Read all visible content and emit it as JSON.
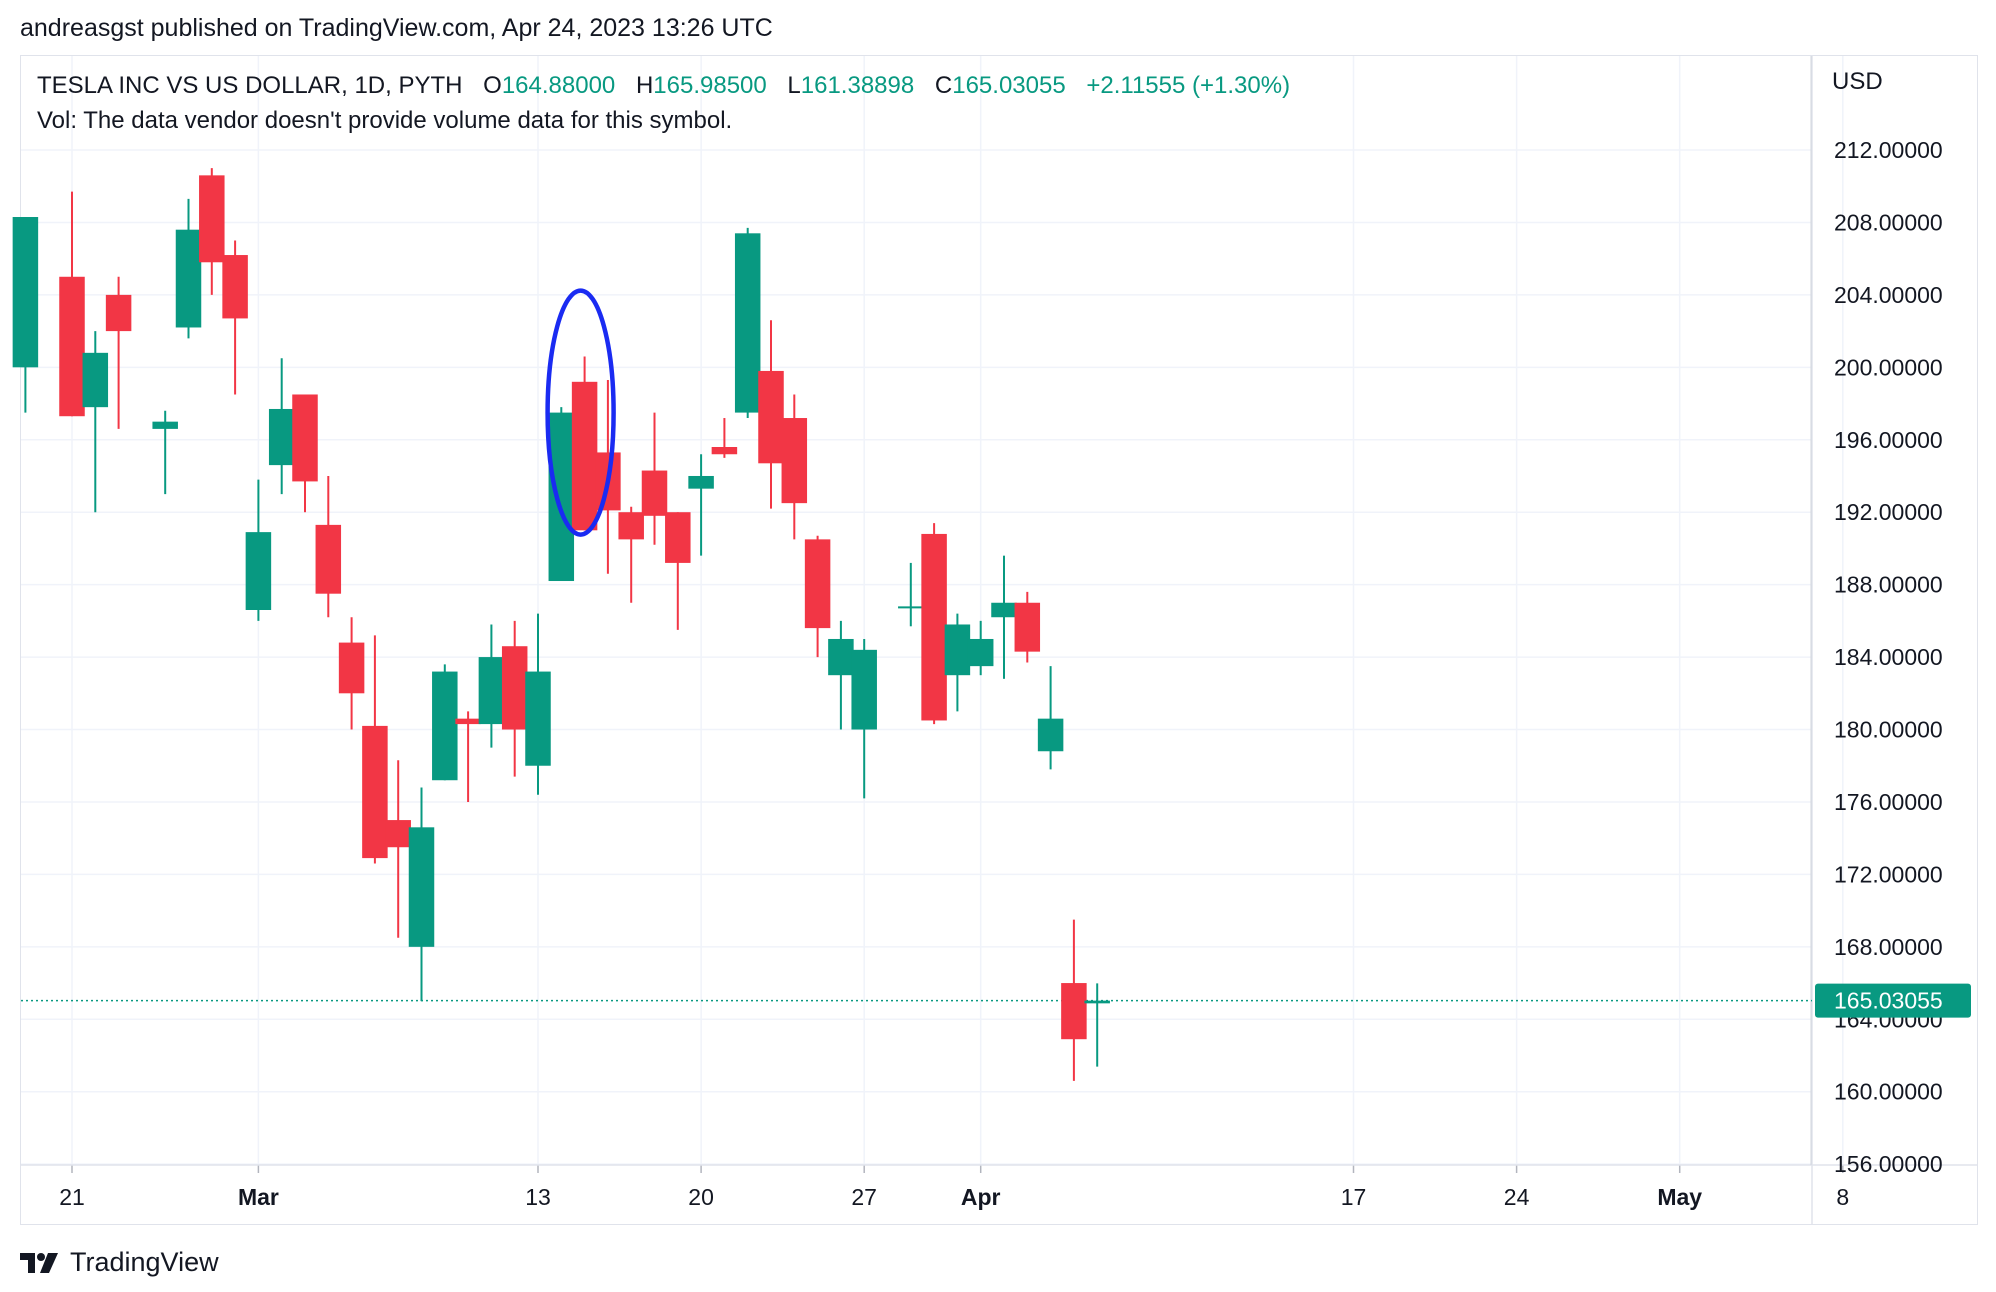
{
  "publisher_line": "andreasgst published on TradingView.com, Apr 24, 2023 13:26 UTC",
  "legend": {
    "symbol": "TESLA INC VS US DOLLAR, 1D, PYTH",
    "o_label": "O",
    "o_value": "164.88000",
    "h_label": "H",
    "h_value": "165.98500",
    "l_label": "L",
    "l_value": "161.38898",
    "c_label": "C",
    "c_value": "165.03055",
    "change": "+2.11555 (+1.30%)",
    "volume_note": "Vol: The data vendor doesn't provide volume data for this symbol."
  },
  "currency": "USD",
  "footer_brand": "TradingView",
  "colors": {
    "up": "#089981",
    "down": "#f23645",
    "grid": "#f0f3fa",
    "annotation": "#1a2bf2",
    "price_line": "#089981"
  },
  "chart_data": {
    "type": "candlestick",
    "title": "TESLA INC VS US DOLLAR, 1D, PYTH",
    "ylabel": "USD",
    "ylim": [
      155,
      217
    ],
    "y_ticks": [
      "212.00000",
      "208.00000",
      "204.00000",
      "200.00000",
      "196.00000",
      "192.00000",
      "188.00000",
      "184.00000",
      "180.00000",
      "176.00000",
      "172.00000",
      "168.00000",
      "164.00000",
      "160.00000",
      "156.00000"
    ],
    "y_tick_values": [
      212,
      208,
      204,
      200,
      196,
      192,
      188,
      184,
      180,
      176,
      172,
      168,
      164,
      160,
      156
    ],
    "x_ticks": [
      {
        "label": "21",
        "day": 0,
        "bold": false
      },
      {
        "label": "Mar",
        "day": 8,
        "bold": true
      },
      {
        "label": "13",
        "day": 20,
        "bold": false
      },
      {
        "label": "20",
        "day": 27,
        "bold": false
      },
      {
        "label": "27",
        "day": 34,
        "bold": false
      },
      {
        "label": "Apr",
        "day": 39,
        "bold": true
      },
      {
        "label": "17",
        "day": 55,
        "bold": false
      },
      {
        "label": "24",
        "day": 62,
        "bold": false
      },
      {
        "label": "May",
        "day": 69,
        "bold": true
      },
      {
        "label": "8",
        "day": 76,
        "bold": false
      }
    ],
    "last_price": 165.03055,
    "last_price_label": "165.03055",
    "candles": [
      {
        "d": -2,
        "o": 200.0,
        "h": 208.3,
        "l": 197.5,
        "c": 208.3
      },
      {
        "d": 0,
        "o": 205.0,
        "h": 209.7,
        "l": 197.3,
        "c": 197.3
      },
      {
        "d": 1,
        "o": 197.8,
        "h": 202.0,
        "l": 192.0,
        "c": 200.8
      },
      {
        "d": 2,
        "o": 204.0,
        "h": 205.0,
        "l": 196.6,
        "c": 202.0
      },
      {
        "d": 4,
        "o": 196.6,
        "h": 197.6,
        "l": 193.0,
        "c": 197.0
      },
      {
        "d": 5,
        "o": 202.2,
        "h": 209.3,
        "l": 201.6,
        "c": 207.6
      },
      {
        "d": 6,
        "o": 210.6,
        "h": 211.0,
        "l": 204.0,
        "c": 205.8
      },
      {
        "d": 7,
        "o": 206.2,
        "h": 207.0,
        "l": 198.5,
        "c": 202.7
      },
      {
        "d": 8,
        "o": 186.6,
        "h": 193.8,
        "l": 186.0,
        "c": 190.9
      },
      {
        "d": 9,
        "o": 194.6,
        "h": 200.5,
        "l": 193.0,
        "c": 197.7
      },
      {
        "d": 10,
        "o": 198.5,
        "h": 198.5,
        "l": 192.0,
        "c": 193.7
      },
      {
        "d": 11,
        "o": 191.3,
        "h": 194.0,
        "l": 186.2,
        "c": 187.5
      },
      {
        "d": 12,
        "o": 184.8,
        "h": 186.2,
        "l": 180.0,
        "c": 182.0
      },
      {
        "d": 13,
        "o": 180.2,
        "h": 185.2,
        "l": 172.6,
        "c": 172.9
      },
      {
        "d": 14,
        "o": 175.0,
        "h": 178.3,
        "l": 168.5,
        "c": 173.5
      },
      {
        "d": 15,
        "o": 168.0,
        "h": 176.8,
        "l": 165.0,
        "c": 174.6
      },
      {
        "d": 16,
        "o": 177.2,
        "h": 183.6,
        "l": 177.2,
        "c": 183.2
      },
      {
        "d": 17,
        "o": 180.6,
        "h": 181.0,
        "l": 176.0,
        "c": 180.3
      },
      {
        "d": 18,
        "o": 180.3,
        "h": 185.8,
        "l": 179.0,
        "c": 184.0
      },
      {
        "d": 19,
        "o": 184.6,
        "h": 186.0,
        "l": 177.4,
        "c": 180.0
      },
      {
        "d": 20,
        "o": 178.0,
        "h": 186.4,
        "l": 176.4,
        "c": 183.2
      },
      {
        "d": 21,
        "o": 188.2,
        "h": 197.8,
        "l": 188.2,
        "c": 197.5
      },
      {
        "d": 22,
        "o": 199.2,
        "h": 200.6,
        "l": 191.0,
        "c": 191.0
      },
      {
        "d": 23,
        "o": 195.3,
        "h": 199.3,
        "l": 188.6,
        "c": 192.1
      },
      {
        "d": 24,
        "o": 192.0,
        "h": 192.3,
        "l": 187.0,
        "c": 190.5
      },
      {
        "d": 25,
        "o": 194.3,
        "h": 197.5,
        "l": 190.2,
        "c": 191.8
      },
      {
        "d": 26,
        "o": 192.0,
        "h": 192.0,
        "l": 185.5,
        "c": 189.2
      },
      {
        "d": 27,
        "o": 193.3,
        "h": 195.2,
        "l": 189.6,
        "c": 194.0
      },
      {
        "d": 28,
        "o": 195.6,
        "h": 197.2,
        "l": 195.0,
        "c": 195.2
      },
      {
        "d": 29,
        "o": 197.5,
        "h": 207.7,
        "l": 197.2,
        "c": 207.4
      },
      {
        "d": 30,
        "o": 199.8,
        "h": 202.6,
        "l": 192.2,
        "c": 194.7
      },
      {
        "d": 31,
        "o": 197.2,
        "h": 198.5,
        "l": 190.5,
        "c": 192.5
      },
      {
        "d": 32,
        "o": 190.5,
        "h": 190.7,
        "l": 184.0,
        "c": 185.6
      },
      {
        "d": 33,
        "o": 183.0,
        "h": 186.0,
        "l": 180.0,
        "c": 185.0
      },
      {
        "d": 34,
        "o": 180.0,
        "h": 185.0,
        "l": 176.2,
        "c": 184.4
      },
      {
        "d": 36,
        "o": 186.8,
        "h": 189.2,
        "l": 185.7,
        "c": 186.8
      },
      {
        "d": 37,
        "o": 190.8,
        "h": 191.4,
        "l": 180.3,
        "c": 180.5
      },
      {
        "d": 38,
        "o": 183.0,
        "h": 186.4,
        "l": 181.0,
        "c": 185.8
      },
      {
        "d": 39,
        "o": 183.5,
        "h": 186.0,
        "l": 183.0,
        "c": 185.0
      },
      {
        "d": 40,
        "o": 186.2,
        "h": 189.6,
        "l": 182.8,
        "c": 187.0
      },
      {
        "d": 41,
        "o": 187.0,
        "h": 187.6,
        "l": 183.7,
        "c": 184.3
      },
      {
        "d": 42,
        "o": 178.8,
        "h": 183.5,
        "l": 177.8,
        "c": 180.6
      },
      {
        "d": 43,
        "o": 166.0,
        "h": 169.5,
        "l": 160.6,
        "c": 162.9
      },
      {
        "d": 44,
        "o": 164.88,
        "h": 165.985,
        "l": 161.38898,
        "c": 165.03055
      }
    ],
    "annotation": {
      "type": "ellipse",
      "around_day": 22
    }
  }
}
